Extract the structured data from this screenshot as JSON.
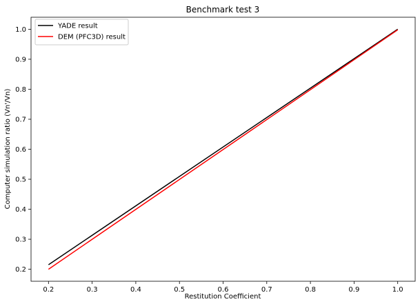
{
  "chart_data": {
    "type": "line",
    "title": "Benchmark test 3",
    "xlabel": "Restitution Coefficient",
    "ylabel": "Computer simulation ratio (Vn'/Vn)",
    "xlim": [
      0.16,
      1.04
    ],
    "ylim": [
      0.16,
      1.04
    ],
    "xticks": [
      "0.2",
      "0.3",
      "0.4",
      "0.5",
      "0.6",
      "0.7",
      "0.8",
      "0.9",
      "1.0"
    ],
    "yticks": [
      "0.2",
      "0.3",
      "0.4",
      "0.5",
      "0.6",
      "0.7",
      "0.8",
      "0.9",
      "1.0"
    ],
    "grid": false,
    "legend_position": "top-left",
    "series": [
      {
        "name": "YADE result",
        "color": "#000000",
        "x": [
          0.2,
          1.0
        ],
        "y": [
          0.215,
          1.0
        ]
      },
      {
        "name": "DEM (PFC3D) result",
        "color": "#ff0000",
        "x": [
          0.2,
          1.0
        ],
        "y": [
          0.2,
          0.998
        ]
      }
    ]
  }
}
